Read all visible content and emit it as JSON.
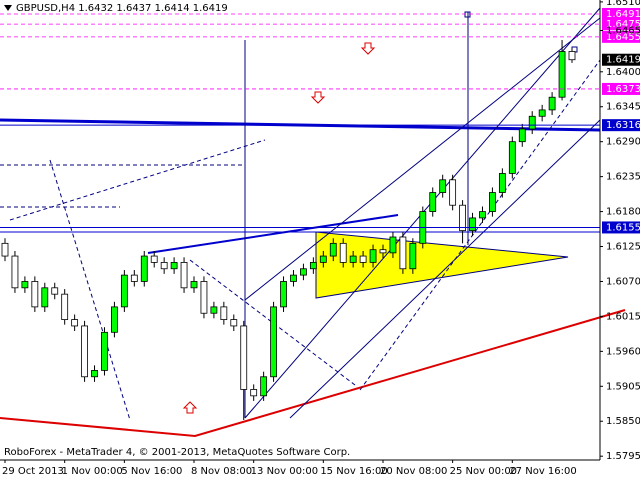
{
  "chart_data": {
    "type": "candlestick",
    "title": "GBPUSD,H4  1.6432 1.6437 1.6414 1.6419",
    "footer": "RoboForex - MetaTrader 4, © 2001-2013, MetaQuotes Software Corp.",
    "categories": [
      "29 Oct 2013",
      null,
      null,
      null,
      null,
      null,
      "1 Nov 00:00",
      null,
      null,
      null,
      null,
      null,
      "5 Nov 16:00",
      null,
      null,
      null,
      null,
      null,
      null,
      "8 Nov 08:00",
      null,
      null,
      null,
      null,
      null,
      "13 Nov 00:00",
      null,
      null,
      null,
      null,
      null,
      null,
      "15 Nov 16:00",
      null,
      null,
      null,
      null,
      null,
      "20 Nov 08:00",
      null,
      null,
      null,
      null,
      null,
      null,
      "25 Nov 00:00",
      null,
      null,
      null,
      null,
      null,
      "27 Nov 16:00",
      null,
      null,
      null,
      null,
      null,
      null
    ],
    "open": [
      1.613,
      1.611,
      1.606,
      1.607,
      1.603,
      1.606,
      1.605,
      1.601,
      1.6,
      1.592,
      1.593,
      1.599,
      1.603,
      1.608,
      1.607,
      1.611,
      1.61,
      1.609,
      1.61,
      1.606,
      1.607,
      1.602,
      1.603,
      1.601,
      1.6,
      1.59,
      1.589,
      1.592,
      1.603,
      1.607,
      1.608,
      1.609,
      1.61,
      1.611,
      1.613,
      1.61,
      1.611,
      1.61,
      1.612,
      1.6115,
      1.614,
      1.609,
      1.613,
      1.618,
      1.621,
      1.623,
      1.619,
      1.615,
      1.617,
      1.618,
      1.621,
      1.624,
      1.629,
      1.631,
      1.633,
      1.634,
      1.636,
      1.6432
    ],
    "high": [
      1.6138,
      1.6118,
      1.6078,
      1.6078,
      1.6068,
      1.6068,
      1.6058,
      1.6018,
      1.6008,
      1.5938,
      1.5998,
      1.6038,
      1.6088,
      1.6088,
      1.6118,
      1.6118,
      1.6108,
      1.6108,
      1.6108,
      1.6078,
      1.6078,
      1.6038,
      1.6038,
      1.6018,
      1.6008,
      1.5908,
      1.5928,
      1.6038,
      1.6078,
      1.6088,
      1.6098,
      1.6108,
      1.6118,
      1.6138,
      1.6138,
      1.6118,
      1.6118,
      1.6128,
      1.6128,
      1.6148,
      1.6148,
      1.6138,
      1.6188,
      1.6218,
      1.6238,
      1.6238,
      1.6198,
      1.6178,
      1.6188,
      1.6218,
      1.6248,
      1.6298,
      1.6318,
      1.6338,
      1.6348,
      1.6368,
      1.645,
      1.6437
    ],
    "low": [
      1.6102,
      1.6052,
      1.6052,
      1.6022,
      1.6022,
      1.6042,
      1.6002,
      1.5992,
      1.5912,
      1.5912,
      1.5922,
      1.5982,
      1.6022,
      1.6062,
      1.6062,
      1.6092,
      1.6082,
      1.6082,
      1.6052,
      1.6052,
      1.6012,
      1.6012,
      1.6002,
      1.5992,
      1.5852,
      1.5882,
      1.5882,
      1.5912,
      1.6022,
      1.6062,
      1.6072,
      1.6082,
      1.6092,
      1.6102,
      1.6092,
      1.6092,
      1.6092,
      1.6092,
      1.6107,
      1.6107,
      1.6082,
      1.6082,
      1.6122,
      1.6172,
      1.6202,
      1.6182,
      1.613,
      1.6142,
      1.6162,
      1.6172,
      1.6202,
      1.6232,
      1.6282,
      1.6302,
      1.6322,
      1.6332,
      1.6355,
      1.6414
    ],
    "close": [
      1.611,
      1.606,
      1.607,
      1.603,
      1.606,
      1.605,
      1.601,
      1.6,
      1.592,
      1.593,
      1.599,
      1.603,
      1.608,
      1.607,
      1.611,
      1.61,
      1.609,
      1.61,
      1.606,
      1.607,
      1.602,
      1.603,
      1.601,
      1.6,
      1.59,
      1.589,
      1.592,
      1.603,
      1.607,
      1.608,
      1.609,
      1.61,
      1.611,
      1.613,
      1.61,
      1.611,
      1.61,
      1.612,
      1.6115,
      1.614,
      1.609,
      1.613,
      1.618,
      1.621,
      1.623,
      1.619,
      1.615,
      1.617,
      1.618,
      1.621,
      1.624,
      1.629,
      1.631,
      1.633,
      1.634,
      1.636,
      1.6432,
      1.6419
    ],
    "up_color": "#00ff00",
    "down_color": "#ffffff",
    "ylim": [
      1.5789,
      1.6513
    ],
    "yticks": [
      {
        "value": 1.651,
        "label": "1.6510"
      },
      1.6465,
      {
        "value": 1.64,
        "label": "1.6400"
      },
      1.6345,
      {
        "value": 1.629,
        "label": "1.6290"
      },
      1.6235,
      {
        "value": 1.618,
        "label": "1.6180"
      },
      1.6125,
      {
        "value": 1.607,
        "label": "1.6070"
      },
      1.6015,
      {
        "value": 1.596,
        "label": "1.5960"
      },
      1.5905,
      {
        "value": 1.585,
        "label": "1.5850"
      },
      1.5795
    ],
    "price_levels": [
      {
        "value": 1.6491,
        "color": "#ff00ff",
        "style": "dashed"
      },
      {
        "value": 1.6475,
        "color": "#ff00ff",
        "style": "dashed"
      },
      {
        "value": 1.6455,
        "color": "#ff00ff",
        "style": "dashed"
      },
      {
        "value": 1.6373,
        "color": "#ff00ff",
        "style": "dashed"
      },
      {
        "value": 1.6316,
        "color": "#0000cc",
        "style": "solid"
      },
      {
        "value": 1.6155,
        "color": "#0000cc",
        "style": "solid"
      },
      {
        "value": 1.6419,
        "color": "#000000",
        "style": "none"
      }
    ]
  }
}
